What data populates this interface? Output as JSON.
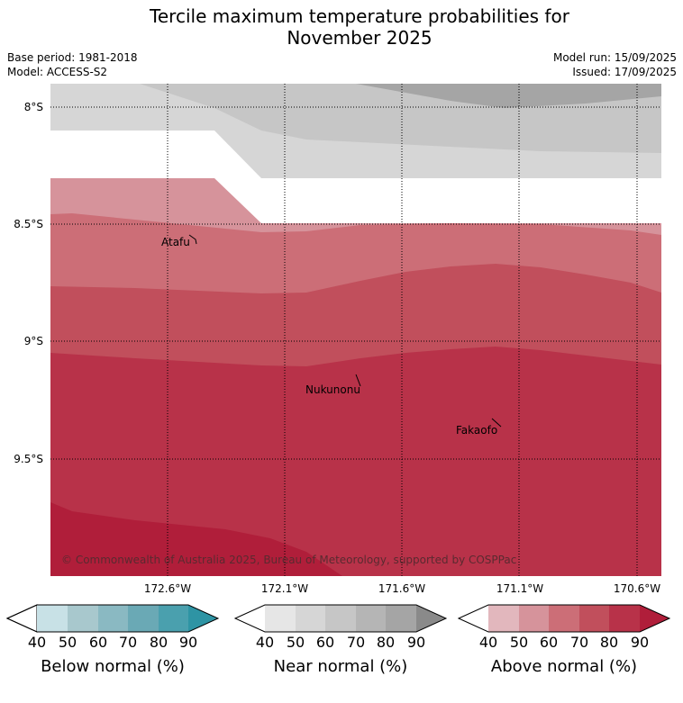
{
  "title": "Tercile maximum temperature probabilities for\nNovember 2025",
  "title_line1": "Tercile maximum temperature probabilities for",
  "title_line2": "November 2025",
  "base_period": "Base period: 1981-2018",
  "model": "Model: ACCESS-S2",
  "model_run": "Model run: 15/09/2025",
  "issued": "Issued: 17/09/2025",
  "map": {
    "lat_labels": [
      "8°S",
      "8.5°S",
      "9°S",
      "9.5°S"
    ],
    "lon_labels": [
      "172.6°W",
      "172.1°W",
      "171.6°W",
      "171.1°W",
      "170.6°W"
    ],
    "places": [
      {
        "name": "Atafu",
        "lat": -8.55,
        "lon": -172.5
      },
      {
        "name": "Nukunonu",
        "lat": -9.17,
        "lon": -171.8
      },
      {
        "name": "Fakaofo",
        "lat": -9.37,
        "lon": -171.2
      }
    ],
    "copyright": "© Commonwealth of Australia 2025, Bureau of Meteorology, supported by COSPPac",
    "gridlines": true
  },
  "colorbars": [
    {
      "label": "Below normal (%)",
      "ticks": [
        "40",
        "50",
        "60",
        "70",
        "80",
        "90"
      ],
      "colors": [
        "#c8e1e6",
        "#a8c8cd",
        "#8ab9c2",
        "#6aa9b5",
        "#4aa0ae",
        "#2e94a4"
      ]
    },
    {
      "label": "Near normal (%)",
      "ticks": [
        "40",
        "50",
        "60",
        "70",
        "80",
        "90"
      ],
      "colors": [
        "#e6e6e6",
        "#d6d6d6",
        "#c6c6c6",
        "#b5b5b5",
        "#a5a5a5",
        "#8a8a8a"
      ]
    },
    {
      "label": "Above normal (%)",
      "ticks": [
        "40",
        "50",
        "60",
        "70",
        "80",
        "90"
      ],
      "colors": [
        "#e2b7bd",
        "#d6939b",
        "#cc6e77",
        "#c14f5c",
        "#b83249",
        "#b01e3a"
      ]
    }
  ]
}
